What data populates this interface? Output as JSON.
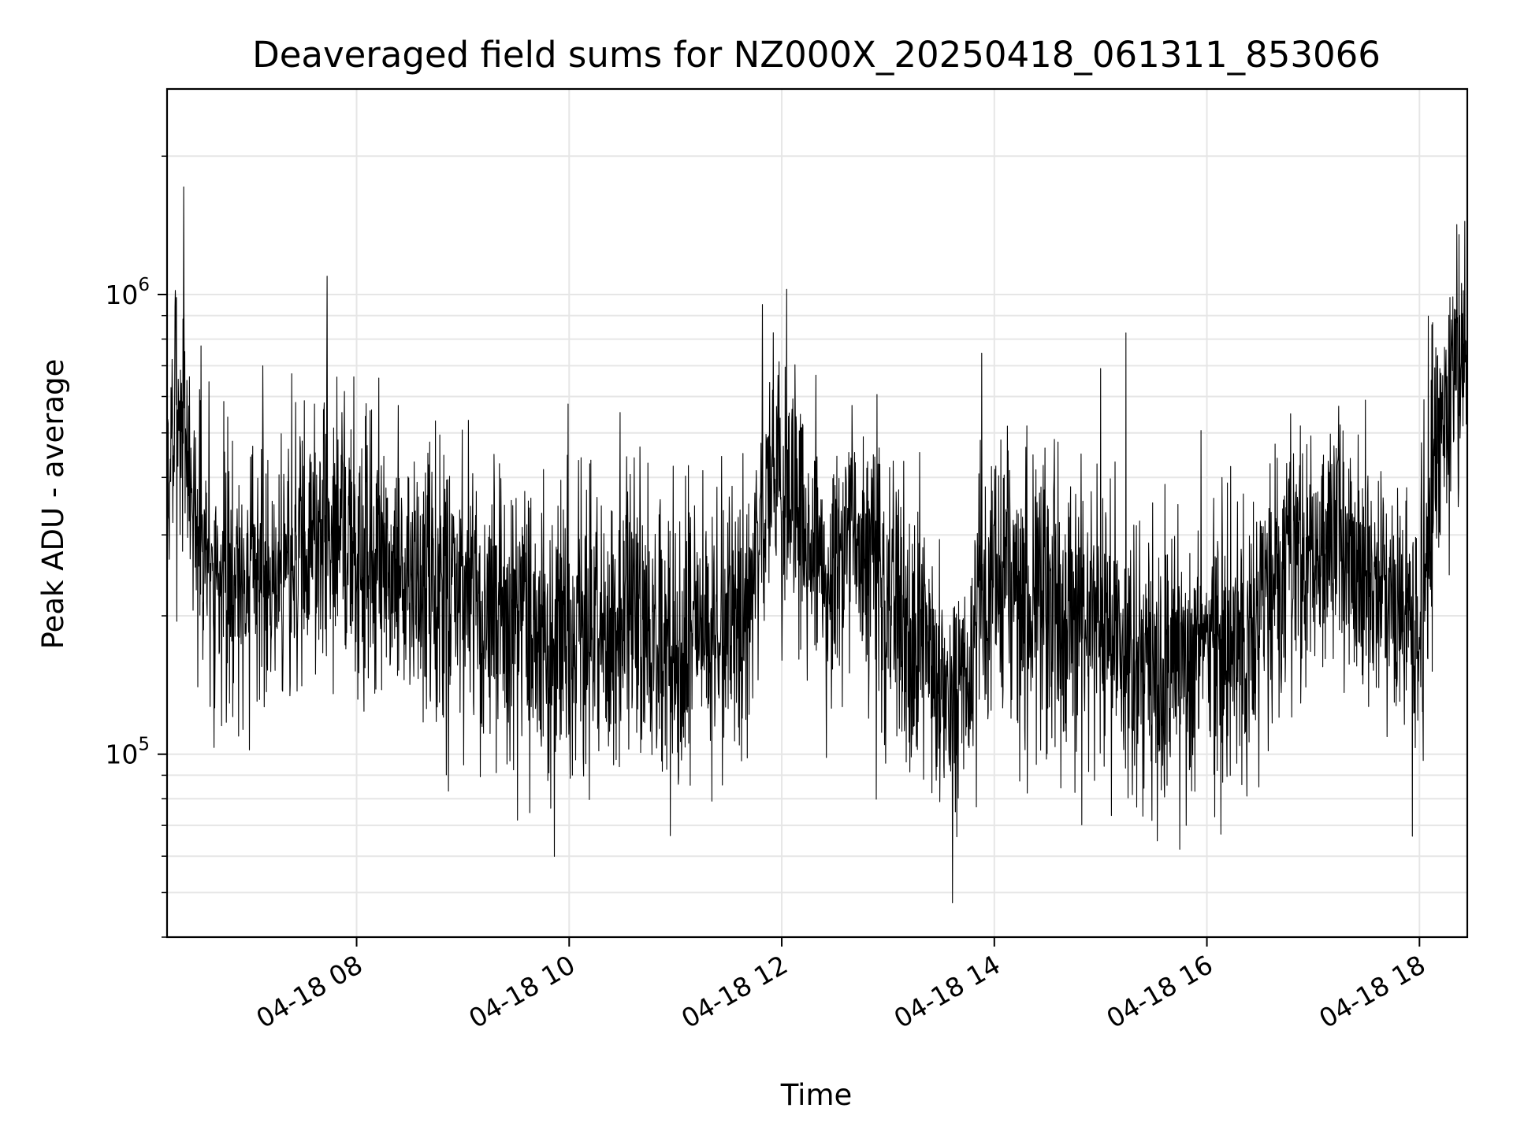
{
  "chart_data": {
    "type": "line",
    "title": "Deaveraged field sums for NZ000X_20250418_061311_853066",
    "xlabel": "Time",
    "ylabel": "Peak ADU - average",
    "x_scale": "time",
    "y_scale": "log",
    "xlim": [
      "2025-04-18 06:13",
      "2025-04-18 18:27"
    ],
    "ylim": [
      40000,
      2800000
    ],
    "x_ticks": [
      {
        "value": "2025-04-18 08:00",
        "label": "04-18 08"
      },
      {
        "value": "2025-04-18 10:00",
        "label": "04-18 10"
      },
      {
        "value": "2025-04-18 12:00",
        "label": "04-18 12"
      },
      {
        "value": "2025-04-18 14:00",
        "label": "04-18 14"
      },
      {
        "value": "2025-04-18 16:00",
        "label": "04-18 16"
      },
      {
        "value": "2025-04-18 18:00",
        "label": "04-18 18"
      }
    ],
    "y_ticks": [
      {
        "value": 100000,
        "base": "10",
        "exp": "5"
      },
      {
        "value": 1000000,
        "base": "10",
        "exp": "6"
      }
    ],
    "grid": true,
    "line_color": "#000000",
    "grid_color": "#e6e6e6",
    "x": [
      "2025-04-18 06:13",
      "2025-04-18 06:20",
      "2025-04-18 06:30",
      "2025-04-18 06:40",
      "2025-04-18 06:50",
      "2025-04-18 07:00",
      "2025-04-18 07:15",
      "2025-04-18 07:30",
      "2025-04-18 07:45",
      "2025-04-18 08:00",
      "2025-04-18 08:20",
      "2025-04-18 08:40",
      "2025-04-18 09:00",
      "2025-04-18 09:20",
      "2025-04-18 09:40",
      "2025-04-18 10:00",
      "2025-04-18 10:20",
      "2025-04-18 10:40",
      "2025-04-18 11:00",
      "2025-04-18 11:20",
      "2025-04-18 11:40",
      "2025-04-18 11:55",
      "2025-04-18 12:10",
      "2025-04-18 12:25",
      "2025-04-18 12:40",
      "2025-04-18 13:00",
      "2025-04-18 13:20",
      "2025-04-18 13:40",
      "2025-04-18 14:00",
      "2025-04-18 14:20",
      "2025-04-18 14:40",
      "2025-04-18 15:00",
      "2025-04-18 15:20",
      "2025-04-18 15:40",
      "2025-04-18 16:00",
      "2025-04-18 16:20",
      "2025-04-18 16:40",
      "2025-04-18 17:00",
      "2025-04-18 17:20",
      "2025-04-18 17:40",
      "2025-04-18 18:00",
      "2025-04-18 18:10",
      "2025-04-18 18:20",
      "2025-04-18 18:27"
    ],
    "y": [
      380000,
      600000,
      320000,
      250000,
      230000,
      260000,
      250000,
      280000,
      330000,
      280000,
      240000,
      220000,
      210000,
      190000,
      180000,
      170000,
      180000,
      200000,
      170000,
      190000,
      200000,
      430000,
      330000,
      230000,
      300000,
      210000,
      150000,
      130000,
      260000,
      230000,
      190000,
      200000,
      140000,
      140000,
      180000,
      180000,
      230000,
      260000,
      290000,
      220000,
      190000,
      500000,
      700000,
      650000
    ]
  }
}
